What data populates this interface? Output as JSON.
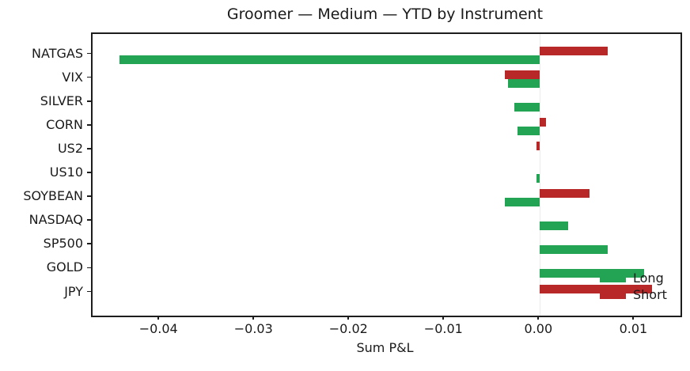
{
  "chart_data": {
    "type": "bar",
    "orientation": "horizontal",
    "title": "Groomer — Medium — YTD by Instrument",
    "xlabel": "Sum P&L",
    "ylabel": "",
    "categories": [
      "NATGAS",
      "VIX",
      "SILVER",
      "CORN",
      "US2",
      "US10",
      "SOYBEAN",
      "NASDAQ",
      "SP500",
      "GOLD",
      "JPY"
    ],
    "series": [
      {
        "name": "Long",
        "color": "#23a455",
        "values": [
          -0.0443,
          -0.0034,
          -0.0027,
          -0.0024,
          null,
          -0.0004,
          -0.0037,
          0.003,
          0.0071,
          0.011,
          null
        ]
      },
      {
        "name": "Short",
        "color": "#b92828",
        "values": [
          0.0071,
          -0.0037,
          null,
          0.0006,
          -0.0004,
          null,
          0.0052,
          null,
          null,
          null,
          0.0118
        ]
      }
    ],
    "xlim": [
      -0.0471,
      0.0148
    ],
    "xticks": [
      -0.04,
      -0.03,
      -0.02,
      -0.01,
      0.0,
      0.01
    ],
    "xtick_labels": [
      "−0.04",
      "−0.03",
      "−0.02",
      "−0.01",
      "0.00",
      "0.01"
    ],
    "grid": false,
    "zero_line": true,
    "zero_line_color": "#ebebeb",
    "axis_color": "#1d1d1d",
    "legend": {
      "position": "lower right",
      "entries": [
        "Long",
        "Short"
      ]
    }
  }
}
